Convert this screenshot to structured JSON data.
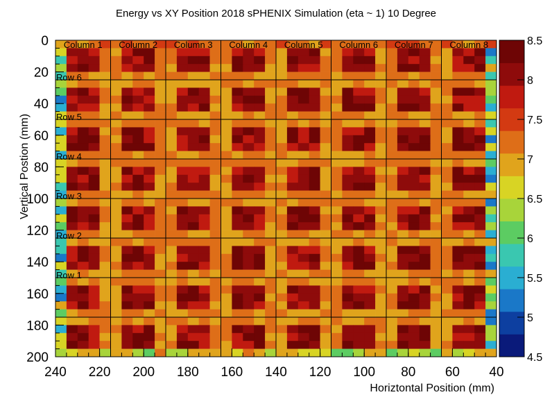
{
  "chart_data": {
    "type": "heatmap",
    "title": "Energy vs XY Position 2018 sPHENIX Simulation (eta ~ 1) 10 Degree",
    "xlabel": "Horiztontal Position (mm)",
    "ylabel": "Vertical Postion (mm)",
    "xlim": [
      240,
      40
    ],
    "ylim": [
      0,
      200
    ],
    "x_ticks": [
      "240",
      "220",
      "200",
      "180",
      "160",
      "140",
      "120",
      "100",
      "80",
      "60",
      "40"
    ],
    "y_ticks": [
      "0",
      "20",
      "40",
      "60",
      "80",
      "100",
      "120",
      "140",
      "160",
      "180",
      "200"
    ],
    "colorbar": {
      "range": [
        4.5,
        8.5
      ],
      "ticks": [
        "4.5",
        "5",
        "5.5",
        "6",
        "6.5",
        "7",
        "7.5",
        "8",
        "8.5"
      ],
      "palette": [
        "#0a1a7a",
        "#0d3fa0",
        "#1a78c8",
        "#2aaed2",
        "#3ac7b0",
        "#5ccc62",
        "#a8d43a",
        "#d8d424",
        "#e0a41c",
        "#de6e18",
        "#d33a12",
        "#c01a10",
        "#8e0b0b",
        "#6e0505"
      ]
    },
    "grid_x_mm": [
      40,
      65,
      90,
      115,
      140,
      165,
      190,
      215,
      240
    ],
    "grid_y_mm": [
      0,
      25,
      50,
      75,
      100,
      125,
      150,
      175,
      200
    ],
    "column_labels": [
      "Column 1",
      "Column 2",
      "Column 3",
      "Column 4",
      "Column 5",
      "Column 6",
      "Column 7",
      "Column 8"
    ],
    "row_labels": [
      "Row 6",
      "Row 5",
      "Row 4",
      "Row 3",
      "Row 2",
      "Row 1"
    ],
    "bins": {
      "x_start": 240,
      "x_end": 40,
      "nx": 40,
      "y_start": 0,
      "y_end": 200,
      "ny": 40,
      "interior_value": 8.1,
      "gap_value": 7.1,
      "edge_value": 5.2
    }
  }
}
